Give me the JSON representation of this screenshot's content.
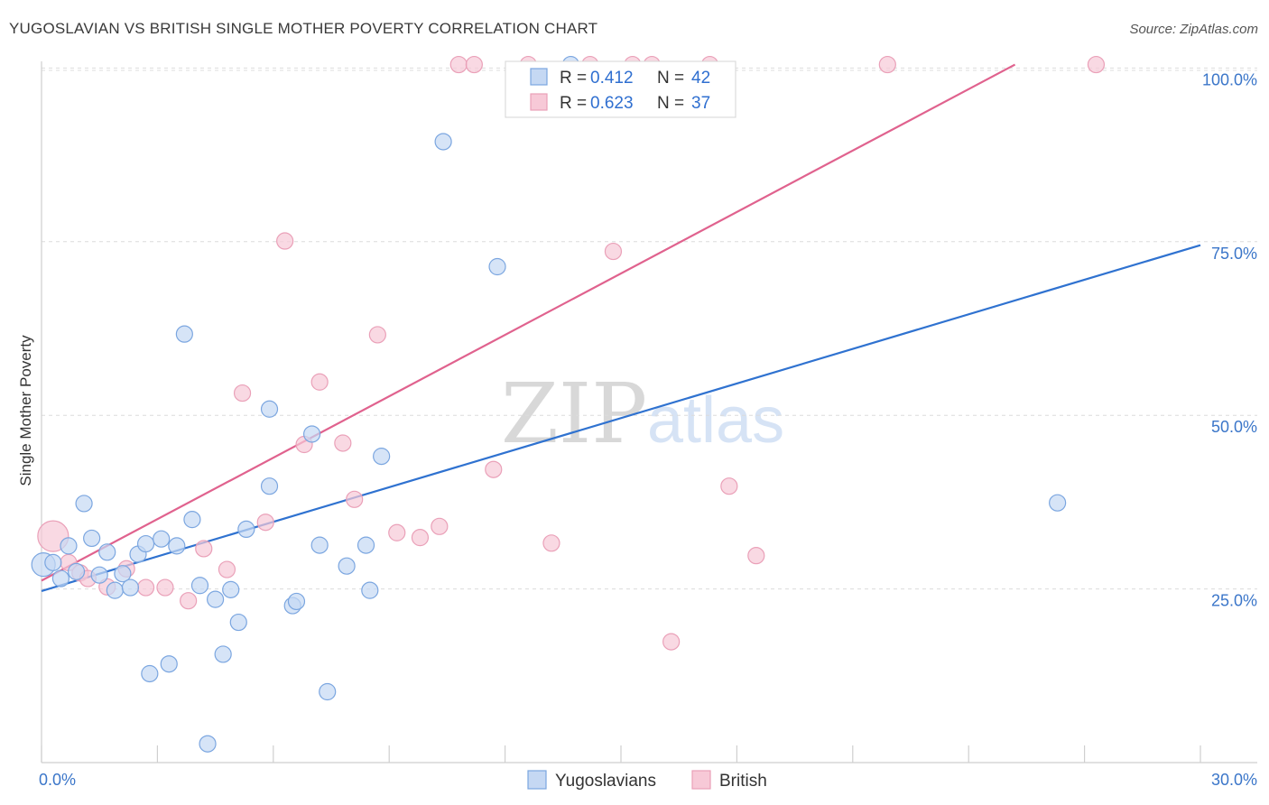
{
  "header": {
    "title": "YUGOSLAVIAN VS BRITISH SINGLE MOTHER POVERTY CORRELATION CHART",
    "source": "Source: ZipAtlas.com"
  },
  "watermark": {
    "zip": "ZIP",
    "atlas": "atlas"
  },
  "chart_data": {
    "type": "scatter",
    "title": "YUGOSLAVIAN VS BRITISH SINGLE MOTHER POVERTY CORRELATION CHART",
    "xlabel": "",
    "ylabel": "Single Mother Poverty",
    "xlim": [
      0,
      30
    ],
    "ylim": [
      0,
      102
    ],
    "x_tick_labels": [
      {
        "value": 0,
        "label": "0.0%"
      },
      {
        "value": 30,
        "label": "30.0%"
      }
    ],
    "y_tick_labels": [
      {
        "value": 25,
        "label": "25.0%"
      },
      {
        "value": 50,
        "label": "50.0%"
      },
      {
        "value": 75,
        "label": "75.0%"
      },
      {
        "value": 100,
        "label": "100.0%"
      }
    ],
    "grid": "horizontal dashed",
    "legend_position": "top-center",
    "stats": [
      {
        "r_label": "R = ",
        "r": "0.412",
        "n_label": "N = ",
        "n": "42"
      },
      {
        "r_label": "R = ",
        "r": "0.623",
        "n_label": "N = ",
        "n": "37"
      }
    ],
    "series": [
      {
        "name": "Yugoslavians",
        "color": "#7ba6e0",
        "fill": "#c5d8f3",
        "line_color": "#2f72d0",
        "trend": {
          "x0": 0,
          "y0": 24.7,
          "x1": 30,
          "y1": 74.5
        },
        "points": [
          [
            0.05,
            28.5
          ],
          [
            0.3,
            28.8
          ],
          [
            0.5,
            26.5
          ],
          [
            0.7,
            31.2
          ],
          [
            0.9,
            27.5
          ],
          [
            1.1,
            37.3
          ],
          [
            1.3,
            32.3
          ],
          [
            1.5,
            27.0
          ],
          [
            1.7,
            30.3
          ],
          [
            1.9,
            24.8
          ],
          [
            2.1,
            27.2
          ],
          [
            2.3,
            25.2
          ],
          [
            2.5,
            30.0
          ],
          [
            2.7,
            31.5
          ],
          [
            2.8,
            12.8
          ],
          [
            3.1,
            32.2
          ],
          [
            3.3,
            14.2
          ],
          [
            3.5,
            31.2
          ],
          [
            3.7,
            61.7
          ],
          [
            3.9,
            35.0
          ],
          [
            4.1,
            25.5
          ],
          [
            4.3,
            2.7
          ],
          [
            4.5,
            23.5
          ],
          [
            4.7,
            15.6
          ],
          [
            4.9,
            24.9
          ],
          [
            5.1,
            20.2
          ],
          [
            5.3,
            33.6
          ],
          [
            5.9,
            50.9
          ],
          [
            5.9,
            39.8
          ],
          [
            6.5,
            22.6
          ],
          [
            6.6,
            23.2
          ],
          [
            7.0,
            47.3
          ],
          [
            7.2,
            31.3
          ],
          [
            7.4,
            10.2
          ],
          [
            7.9,
            28.3
          ],
          [
            8.4,
            31.3
          ],
          [
            8.5,
            24.8
          ],
          [
            8.8,
            44.1
          ],
          [
            10.4,
            89.4
          ],
          [
            11.8,
            71.4
          ],
          [
            13.7,
            100.5
          ],
          [
            26.3,
            37.4
          ]
        ]
      },
      {
        "name": "British",
        "color": "#eaa0b8",
        "fill": "#f7c9d7",
        "line_color": "#e0628e",
        "trend": {
          "x0": 0,
          "y0": 26.2,
          "x1": 25.2,
          "y1": 100.5
        },
        "points": [
          [
            0.3,
            32.6
          ],
          [
            0.7,
            28.8
          ],
          [
            1.0,
            27.3
          ],
          [
            1.2,
            26.5
          ],
          [
            1.7,
            25.3
          ],
          [
            2.2,
            27.9
          ],
          [
            2.7,
            25.2
          ],
          [
            3.2,
            25.2
          ],
          [
            3.8,
            23.3
          ],
          [
            4.2,
            30.8
          ],
          [
            4.8,
            27.8
          ],
          [
            5.2,
            53.2
          ],
          [
            5.8,
            34.6
          ],
          [
            6.3,
            75.1
          ],
          [
            6.8,
            45.8
          ],
          [
            7.2,
            54.8
          ],
          [
            7.8,
            46.0
          ],
          [
            8.1,
            37.9
          ],
          [
            8.7,
            61.6
          ],
          [
            9.2,
            33.1
          ],
          [
            9.8,
            32.4
          ],
          [
            10.3,
            34.0
          ],
          [
            10.8,
            100.5
          ],
          [
            11.2,
            100.5
          ],
          [
            11.7,
            42.2
          ],
          [
            12.6,
            100.5
          ],
          [
            13.2,
            31.6
          ],
          [
            14.2,
            100.5
          ],
          [
            14.8,
            73.6
          ],
          [
            15.3,
            100.5
          ],
          [
            15.8,
            100.5
          ],
          [
            16.3,
            17.4
          ],
          [
            17.3,
            100.5
          ],
          [
            17.8,
            39.8
          ],
          [
            18.5,
            29.8
          ],
          [
            21.9,
            100.5
          ],
          [
            27.3,
            100.5
          ]
        ]
      }
    ]
  }
}
